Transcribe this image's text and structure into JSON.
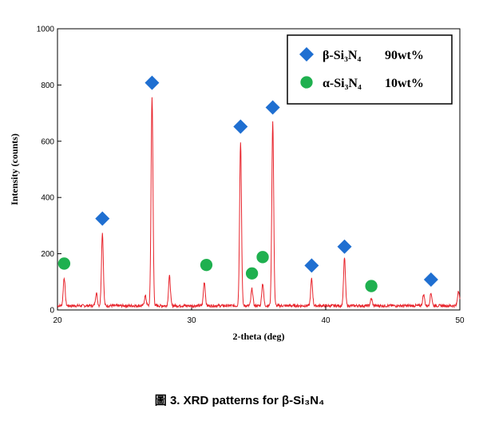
{
  "chart_data": {
    "type": "line",
    "xlabel": "2-theta (deg)",
    "ylabel": "Intensity (counts)",
    "xlim": [
      20,
      50
    ],
    "ylim": [
      0,
      1000
    ],
    "x_ticks": [
      "20",
      "30",
      "40",
      "50"
    ],
    "y_ticks": [
      "0",
      "200",
      "400",
      "600",
      "800",
      "1000"
    ],
    "grid": false,
    "legend_position": "top-right",
    "line_color": "#e8242c",
    "series": [
      {
        "baseline": 15,
        "peaks": [
          {
            "x": 20.5,
            "y": 115
          },
          {
            "x": 22.9,
            "y": 60
          },
          {
            "x": 23.35,
            "y": 275
          },
          {
            "x": 26.55,
            "y": 50
          },
          {
            "x": 27.05,
            "y": 760
          },
          {
            "x": 28.35,
            "y": 120
          },
          {
            "x": 30.95,
            "y": 100
          },
          {
            "x": 33.65,
            "y": 600
          },
          {
            "x": 34.5,
            "y": 75
          },
          {
            "x": 35.3,
            "y": 95
          },
          {
            "x": 36.05,
            "y": 670
          },
          {
            "x": 38.95,
            "y": 110
          },
          {
            "x": 41.4,
            "y": 185
          },
          {
            "x": 43.4,
            "y": 40
          },
          {
            "x": 47.3,
            "y": 55
          },
          {
            "x": 47.85,
            "y": 60
          },
          {
            "x": 49.9,
            "y": 70
          }
        ]
      }
    ],
    "markers": [
      {
        "phase": "beta",
        "shape": "diamond",
        "color": "#1f6fd1",
        "x": 23.35,
        "y": 325
      },
      {
        "phase": "beta",
        "shape": "diamond",
        "color": "#1f6fd1",
        "x": 27.05,
        "y": 808
      },
      {
        "phase": "beta",
        "shape": "diamond",
        "color": "#1f6fd1",
        "x": 33.65,
        "y": 652
      },
      {
        "phase": "beta",
        "shape": "diamond",
        "color": "#1f6fd1",
        "x": 36.05,
        "y": 720
      },
      {
        "phase": "beta",
        "shape": "diamond",
        "color": "#1f6fd1",
        "x": 38.95,
        "y": 158
      },
      {
        "phase": "beta",
        "shape": "diamond",
        "color": "#1f6fd1",
        "x": 41.4,
        "y": 225
      },
      {
        "phase": "beta",
        "shape": "diamond",
        "color": "#1f6fd1",
        "x": 47.85,
        "y": 108
      },
      {
        "phase": "alpha",
        "shape": "circle",
        "color": "#1fb04f",
        "x": 20.5,
        "y": 165
      },
      {
        "phase": "alpha",
        "shape": "circle",
        "color": "#1fb04f",
        "x": 31.1,
        "y": 160
      },
      {
        "phase": "alpha",
        "shape": "circle",
        "color": "#1fb04f",
        "x": 34.5,
        "y": 130
      },
      {
        "phase": "alpha",
        "shape": "circle",
        "color": "#1fb04f",
        "x": 35.3,
        "y": 188
      },
      {
        "phase": "alpha",
        "shape": "circle",
        "color": "#1fb04f",
        "x": 43.4,
        "y": 85
      }
    ],
    "legend": [
      {
        "shape": "diamond",
        "color": "#1f6fd1",
        "label": "β-Si₃N₄",
        "value": "90wt%"
      },
      {
        "shape": "circle",
        "color": "#1fb04f",
        "label": "α-Si₃N₄",
        "value": "10wt%"
      }
    ]
  },
  "caption": "圖 3. XRD patterns for β-Si₃N₄"
}
